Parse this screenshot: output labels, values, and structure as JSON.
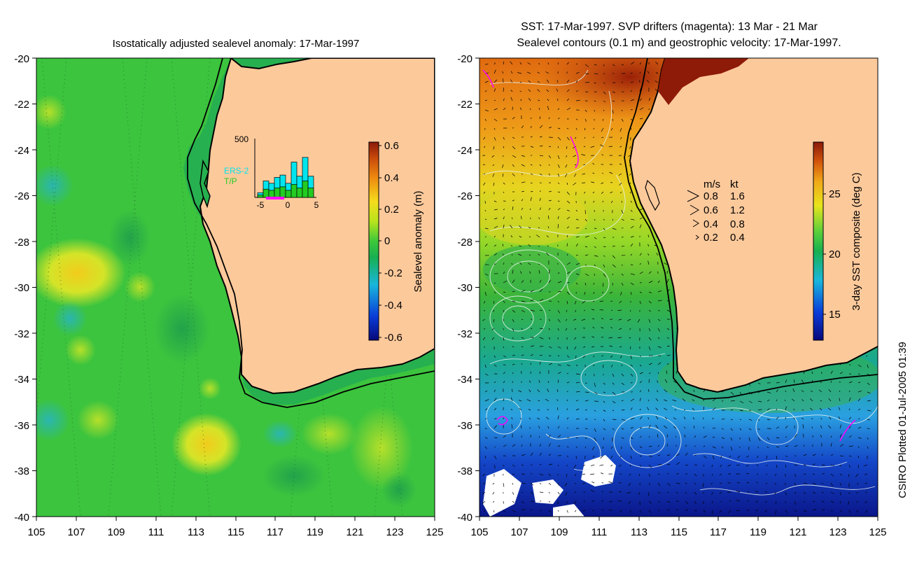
{
  "left_panel": {
    "title": "Isostatically adjusted sealevel anomaly: 17-Mar-1997",
    "y_ticks": [
      "-20",
      "-22",
      "-24",
      "-26",
      "-28",
      "-30",
      "-32",
      "-34",
      "-36",
      "-38",
      "-40"
    ],
    "x_ticks": [
      "105",
      "107",
      "109",
      "111",
      "113",
      "115",
      "117",
      "119",
      "121",
      "123",
      "125"
    ],
    "colorbar": {
      "label": "Sealevel anomaly (m)",
      "ticks": [
        "0.6",
        "0.4",
        "0.2",
        "0",
        "-0.2",
        "-0.4",
        "-0.6"
      ]
    },
    "inset": {
      "y_max_label": "500",
      "series_labels": [
        "ERS-2",
        "T/P"
      ],
      "x_ticks": [
        "-5",
        "0",
        "5"
      ],
      "series_colors": {
        "ERS-2": "#00e5ee",
        "T/P": "#22cc22"
      },
      "bars_ers2": [
        40,
        140,
        120,
        170,
        190,
        120,
        300,
        180,
        340,
        180
      ],
      "bars_tp": [
        20,
        70,
        60,
        80,
        90,
        60,
        110,
        80,
        140,
        80
      ]
    }
  },
  "right_panel": {
    "title_line1": "SST: 17-Mar-1997. SVP drifters (magenta): 13 Mar - 21 Mar",
    "title_line2": "Sealevel contours (0.1 m) and geostrophic velocity: 17-Mar-1997.",
    "y_ticks": [
      "-20",
      "-22",
      "-24",
      "-26",
      "-28",
      "-30",
      "-32",
      "-34",
      "-36",
      "-38",
      "-40"
    ],
    "x_ticks": [
      "105",
      "107",
      "109",
      "111",
      "113",
      "115",
      "117",
      "119",
      "121",
      "123",
      "125"
    ],
    "colorbar": {
      "label": "3-day SST composite (deg C)",
      "ticks": [
        "25",
        "20",
        "15"
      ]
    },
    "velocity_legend": {
      "headers": [
        "m/s",
        "kt"
      ],
      "rows": [
        {
          "ms": "0.8",
          "kt": "1.6"
        },
        {
          "ms": "0.6",
          "kt": "1.2"
        },
        {
          "ms": "0.4",
          "kt": "0.8"
        },
        {
          "ms": "0.2",
          "kt": "0.4"
        }
      ]
    }
  },
  "credit": "CSIRO Plotted 01-Jul-2005 01:39",
  "colors": {
    "land": "#fcc99b",
    "coast": "#000000",
    "drifter": "#ff00ff"
  }
}
